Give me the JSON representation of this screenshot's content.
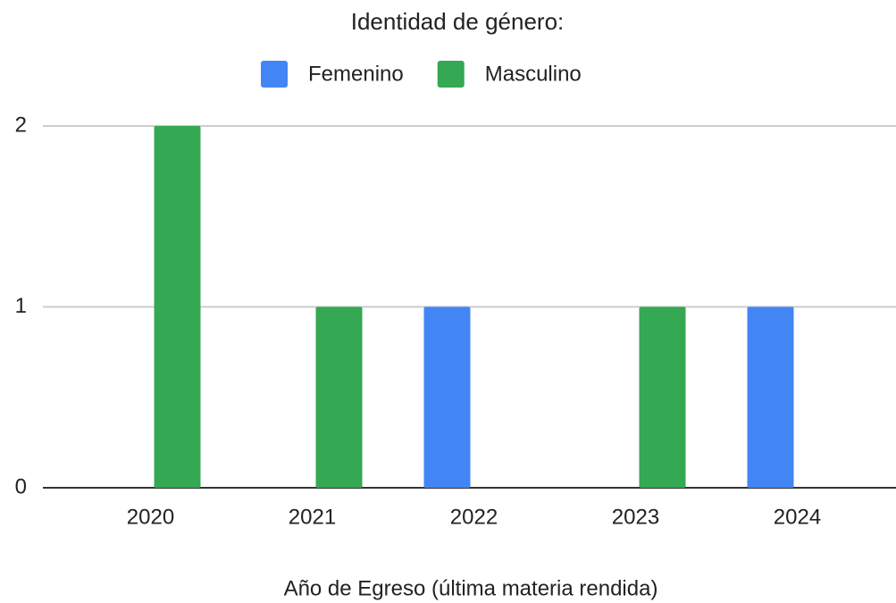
{
  "chart_data": {
    "type": "bar",
    "title": "Identidad de género:",
    "x_label": "Año de Egreso (última materia rendida)",
    "categories": [
      "2020",
      "2021",
      "2022",
      "2023",
      "2024"
    ],
    "series": [
      {
        "name": "Femenino",
        "color": "#4285f4",
        "values": [
          0,
          0,
          1,
          0,
          1
        ]
      },
      {
        "name": "Masculino",
        "color": "#34a853",
        "values": [
          2,
          1,
          0,
          1,
          0
        ]
      }
    ],
    "ylim": [
      0,
      2
    ],
    "yticks": [
      0,
      1,
      2
    ],
    "grid": true,
    "legend": "top"
  }
}
